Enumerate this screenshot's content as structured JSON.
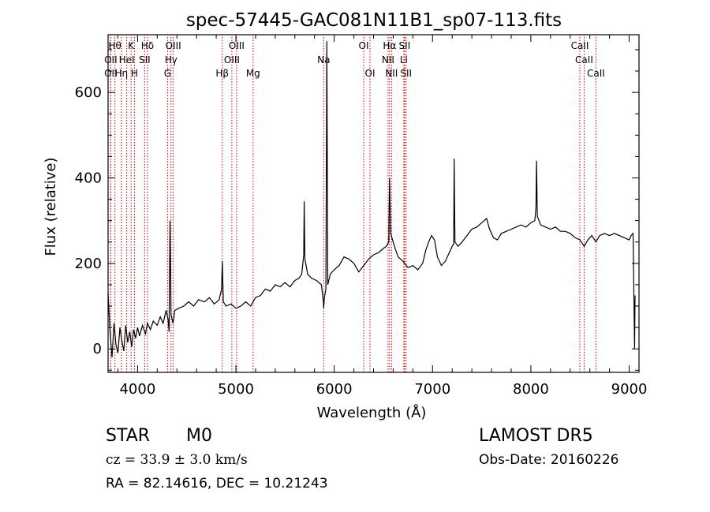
{
  "chart_data": {
    "type": "line",
    "title": "spec-57445-GAC081N11B1_sp07-113.fits",
    "xlabel": "Wavelength (Å)",
    "ylabel": "Flux (relative)",
    "xlim": [
      3700,
      9100
    ],
    "ylim": [
      -55,
      735
    ],
    "xticks": [
      4000,
      5000,
      6000,
      7000,
      8000,
      9000
    ],
    "yticks": [
      0,
      200,
      400,
      600
    ],
    "grid": false,
    "series": [
      {
        "points": [
          [
            3700,
            130
          ],
          [
            3720,
            40
          ],
          [
            3740,
            -20
          ],
          [
            3760,
            60
          ],
          [
            3780,
            10
          ],
          [
            3800,
            -10
          ],
          [
            3820,
            50
          ],
          [
            3840,
            20
          ],
          [
            3860,
            -5
          ],
          [
            3880,
            55
          ],
          [
            3900,
            15
          ],
          [
            3920,
            40
          ],
          [
            3940,
            5
          ],
          [
            3960,
            45
          ],
          [
            3980,
            25
          ],
          [
            4000,
            50
          ],
          [
            4020,
            30
          ],
          [
            4050,
            55
          ],
          [
            4080,
            35
          ],
          [
            4100,
            60
          ],
          [
            4130,
            45
          ],
          [
            4160,
            65
          ],
          [
            4200,
            55
          ],
          [
            4230,
            75
          ],
          [
            4260,
            60
          ],
          [
            4290,
            90
          ],
          [
            4310,
            70
          ],
          [
            4320,
            40
          ],
          [
            4330,
            300
          ],
          [
            4340,
            80
          ],
          [
            4360,
            60
          ],
          [
            4380,
            90
          ],
          [
            4420,
            95
          ],
          [
            4470,
            100
          ],
          [
            4520,
            110
          ],
          [
            4570,
            100
          ],
          [
            4620,
            115
          ],
          [
            4680,
            110
          ],
          [
            4730,
            120
          ],
          [
            4780,
            105
          ],
          [
            4830,
            115
          ],
          [
            4855,
            140
          ],
          [
            4862,
            205
          ],
          [
            4872,
            110
          ],
          [
            4900,
            100
          ],
          [
            4950,
            105
          ],
          [
            5000,
            95
          ],
          [
            5050,
            100
          ],
          [
            5100,
            110
          ],
          [
            5150,
            100
          ],
          [
            5200,
            120
          ],
          [
            5250,
            125
          ],
          [
            5300,
            140
          ],
          [
            5350,
            135
          ],
          [
            5400,
            150
          ],
          [
            5450,
            145
          ],
          [
            5500,
            155
          ],
          [
            5550,
            145
          ],
          [
            5600,
            160
          ],
          [
            5640,
            165
          ],
          [
            5670,
            175
          ],
          [
            5690,
            220
          ],
          [
            5695,
            345
          ],
          [
            5702,
            210
          ],
          [
            5730,
            175
          ],
          [
            5770,
            165
          ],
          [
            5820,
            160
          ],
          [
            5870,
            150
          ],
          [
            5890,
            110
          ],
          [
            5893,
            95
          ],
          [
            5900,
            120
          ],
          [
            5915,
            140
          ],
          [
            5925,
            720
          ],
          [
            5935,
            150
          ],
          [
            5960,
            175
          ],
          [
            6000,
            185
          ],
          [
            6050,
            195
          ],
          [
            6100,
            215
          ],
          [
            6150,
            210
          ],
          [
            6200,
            200
          ],
          [
            6250,
            180
          ],
          [
            6300,
            195
          ],
          [
            6350,
            210
          ],
          [
            6400,
            220
          ],
          [
            6450,
            225
          ],
          [
            6500,
            235
          ],
          [
            6530,
            240
          ],
          [
            6555,
            250
          ],
          [
            6563,
            400
          ],
          [
            6575,
            270
          ],
          [
            6600,
            250
          ],
          [
            6620,
            235
          ],
          [
            6650,
            215
          ],
          [
            6700,
            205
          ],
          [
            6750,
            190
          ],
          [
            6800,
            195
          ],
          [
            6850,
            185
          ],
          [
            6900,
            200
          ],
          [
            6930,
            230
          ],
          [
            6960,
            250
          ],
          [
            6990,
            265
          ],
          [
            7020,
            255
          ],
          [
            7050,
            215
          ],
          [
            7090,
            195
          ],
          [
            7130,
            205
          ],
          [
            7170,
            225
          ],
          [
            7200,
            240
          ],
          [
            7215,
            245
          ],
          [
            7220,
            445
          ],
          [
            7228,
            250
          ],
          [
            7260,
            240
          ],
          [
            7300,
            250
          ],
          [
            7350,
            265
          ],
          [
            7400,
            280
          ],
          [
            7450,
            285
          ],
          [
            7500,
            295
          ],
          [
            7550,
            305
          ],
          [
            7580,
            280
          ],
          [
            7620,
            260
          ],
          [
            7660,
            255
          ],
          [
            7700,
            270
          ],
          [
            7750,
            275
          ],
          [
            7800,
            280
          ],
          [
            7850,
            285
          ],
          [
            7900,
            290
          ],
          [
            7950,
            285
          ],
          [
            8000,
            295
          ],
          [
            8040,
            300
          ],
          [
            8052,
            330
          ],
          [
            8058,
            440
          ],
          [
            8066,
            310
          ],
          [
            8100,
            290
          ],
          [
            8150,
            285
          ],
          [
            8200,
            280
          ],
          [
            8250,
            285
          ],
          [
            8300,
            275
          ],
          [
            8350,
            275
          ],
          [
            8400,
            270
          ],
          [
            8450,
            260
          ],
          [
            8500,
            255
          ],
          [
            8542,
            240
          ],
          [
            8580,
            255
          ],
          [
            8620,
            265
          ],
          [
            8662,
            250
          ],
          [
            8700,
            265
          ],
          [
            8750,
            270
          ],
          [
            8800,
            265
          ],
          [
            8850,
            270
          ],
          [
            8900,
            265
          ],
          [
            8950,
            260
          ],
          [
            9000,
            255
          ],
          [
            9020,
            265
          ],
          [
            9040,
            270
          ],
          [
            9055,
            0
          ],
          [
            9060,
            125
          ]
        ]
      }
    ],
    "line_markers": [
      {
        "wave": 3770,
        "row": 1,
        "label": "Hθ"
      },
      {
        "wave": 3727,
        "row": 2,
        "label": "OII"
      },
      {
        "wave": 3727,
        "row": 3,
        "label": "OII"
      },
      {
        "wave": 3835,
        "row": 3,
        "label": "Hη"
      },
      {
        "wave": 3934,
        "row": 1,
        "label": "K"
      },
      {
        "wave": 3889,
        "row": 2,
        "label": "HeI"
      },
      {
        "wave": 3968,
        "row": 3,
        "label": "H"
      },
      {
        "wave": 4101,
        "row": 1,
        "label": "Hδ"
      },
      {
        "wave": 4072,
        "row": 2,
        "label": "SII"
      },
      {
        "wave": 4363,
        "row": 1,
        "label": "OIII"
      },
      {
        "wave": 4340,
        "row": 2,
        "label": "Hγ"
      },
      {
        "wave": 4305,
        "row": 3,
        "label": "G"
      },
      {
        "wave": 4861,
        "row": 3,
        "label": "Hβ"
      },
      {
        "wave": 5007,
        "row": 1,
        "label": "OIII"
      },
      {
        "wave": 4959,
        "row": 2,
        "label": "OIII"
      },
      {
        "wave": 5175,
        "row": 3,
        "label": "Mg"
      },
      {
        "wave": 5893,
        "row": 2,
        "label": "Na"
      },
      {
        "wave": 6300,
        "row": 1,
        "label": "OI"
      },
      {
        "wave": 6364,
        "row": 3,
        "label": "OI"
      },
      {
        "wave": 6563,
        "row": 1,
        "label": "Hα"
      },
      {
        "wave": 6548,
        "row": 2,
        "label": "NII"
      },
      {
        "wave": 6583,
        "row": 3,
        "label": "NII"
      },
      {
        "wave": 6716,
        "row": 1,
        "label": "SII"
      },
      {
        "wave": 6708,
        "row": 2,
        "label": "Li"
      },
      {
        "wave": 6731,
        "row": 3,
        "label": "SII"
      },
      {
        "wave": 8498,
        "row": 1,
        "label": "CaII"
      },
      {
        "wave": 8542,
        "row": 2,
        "label": "CaII"
      },
      {
        "wave": 8662,
        "row": 3,
        "label": "CaII"
      }
    ]
  },
  "info": {
    "class": "STAR",
    "subclass": "M0",
    "survey": "LAMOST DR5",
    "cz": "cz = 33.9 ± 3.0 km/s",
    "obs_date": "Obs-Date: 20160226",
    "coords": "RA =  82.14616, DEC =  10.21243"
  },
  "colors": {
    "line": "#000000",
    "marker": "#cc0000"
  }
}
